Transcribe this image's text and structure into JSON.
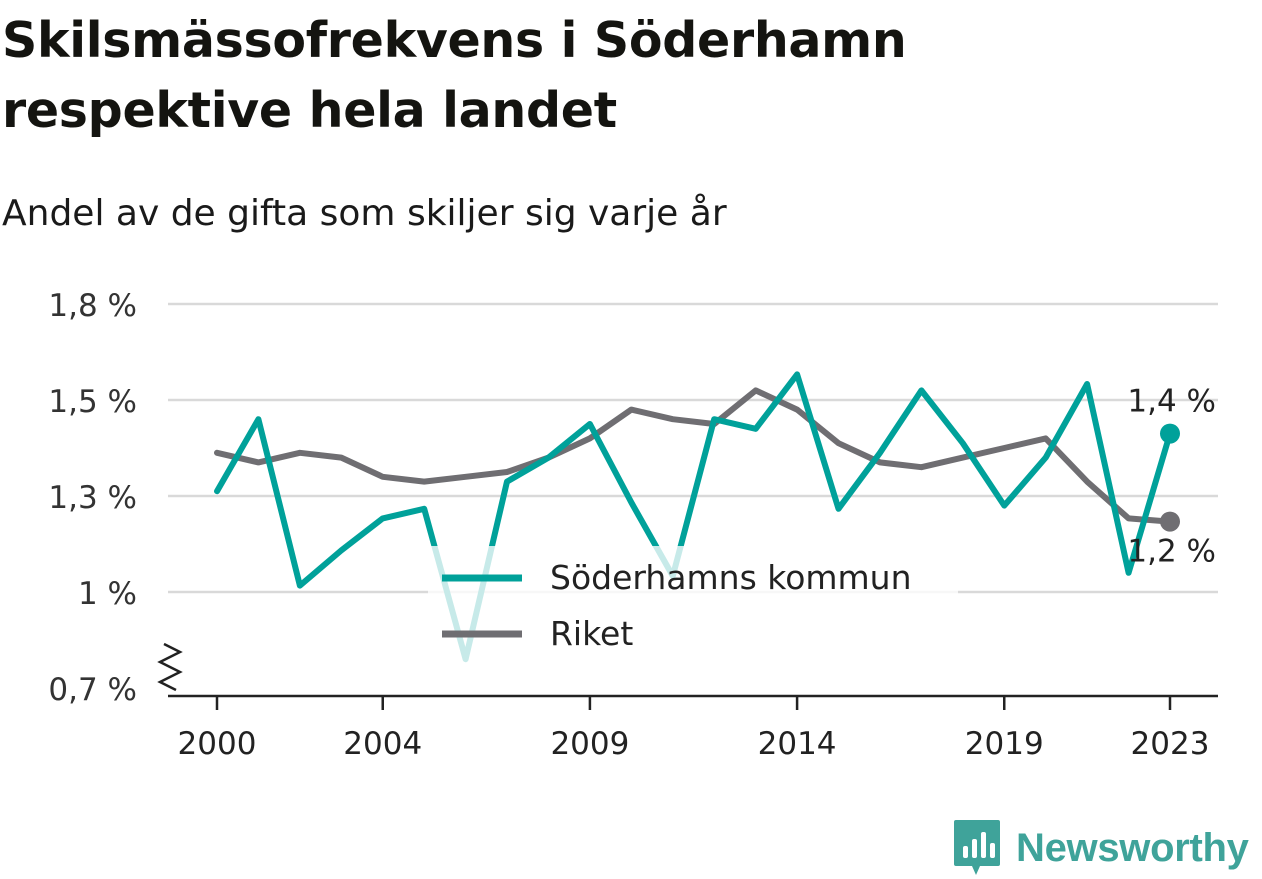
{
  "header": {
    "title": "Skilsmässofrekvens i Söderhamn respektive hela landet",
    "subtitle": "Andel av de gifta som skiljer sig varje år"
  },
  "brand": {
    "name": "Newsworthy",
    "icon": "newsworthy-logo-icon",
    "color": "#3fa39a"
  },
  "chart_data": {
    "type": "line",
    "title": "Skilsmässofrekvens i Söderhamn respektive hela landet",
    "subtitle": "Andel av de gifta som skiljer sig varje år",
    "xlabel": "",
    "ylabel": "",
    "x": [
      2000,
      2001,
      2002,
      2003,
      2004,
      2005,
      2006,
      2007,
      2008,
      2009,
      2010,
      2011,
      2012,
      2013,
      2014,
      2015,
      2016,
      2017,
      2018,
      2019,
      2020,
      2021,
      2022,
      2023
    ],
    "x_ticks": [
      2000,
      2004,
      2009,
      2014,
      2019,
      2023
    ],
    "x_tick_labels": [
      "2000",
      "2004",
      "2009",
      "2014",
      "2019",
      "2023"
    ],
    "ylim": [
      0.7,
      1.8
    ],
    "y_ticks": [
      0.7,
      1.0,
      1.3,
      1.5,
      1.8
    ],
    "y_tick_labels": [
      "0,7 %",
      "1 %",
      "1,3 %",
      "1,5 %",
      "1,8 %"
    ],
    "y_axis_break": true,
    "grid": true,
    "legend_position": "center-bottom",
    "series": [
      {
        "name": "Söderhamns kommun",
        "color": "#00a19a",
        "values": [
          1.31,
          1.46,
          1.02,
          1.13,
          1.23,
          1.26,
          0.79,
          1.33,
          1.38,
          1.45,
          1.28,
          1.05,
          1.46,
          1.44,
          1.58,
          1.26,
          1.39,
          1.53,
          1.41,
          1.27,
          1.38,
          1.55,
          1.06,
          1.43
        ],
        "end_label": "1,4 %"
      },
      {
        "name": "Riket",
        "color": "#6f6e72",
        "values": [
          1.39,
          1.37,
          1.39,
          1.38,
          1.34,
          1.33,
          1.34,
          1.35,
          1.38,
          1.42,
          1.48,
          1.46,
          1.45,
          1.53,
          1.48,
          1.41,
          1.37,
          1.36,
          1.38,
          1.4,
          1.42,
          1.33,
          1.23,
          1.22
        ],
        "end_label": "1,2 %"
      }
    ]
  }
}
